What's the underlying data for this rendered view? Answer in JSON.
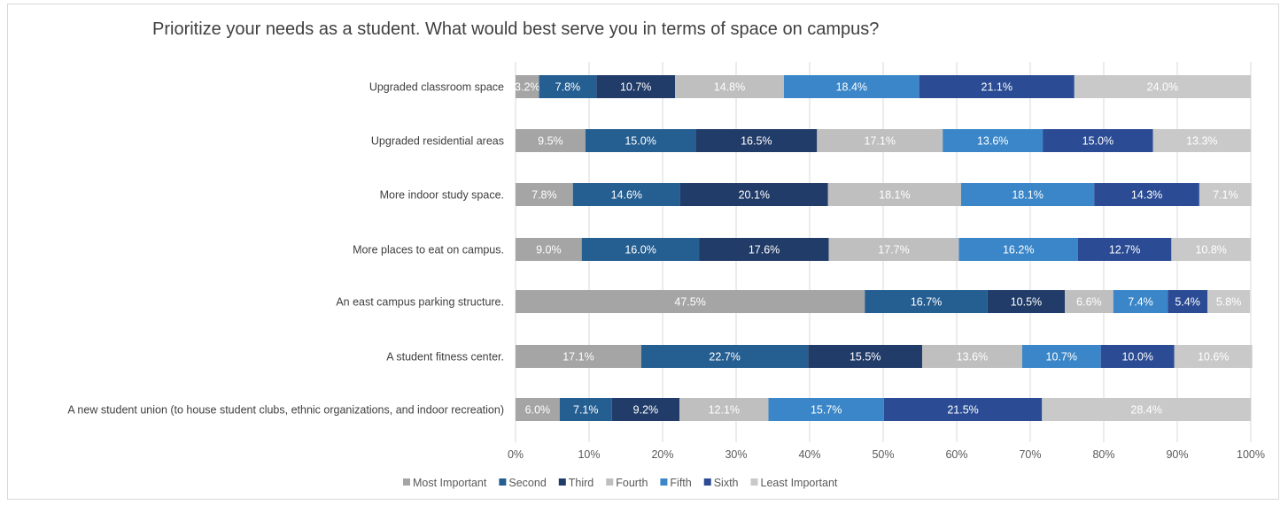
{
  "chart_data": {
    "type": "bar",
    "orientation": "horizontal",
    "stacked": "percent",
    "title": "Prioritize your needs as a student. What would best serve you in terms of space on campus?",
    "categories": [
      "Upgraded classroom space",
      "Upgraded residential areas",
      "More indoor study space.",
      "More places to eat on campus.",
      "An east campus parking structure.",
      "A student fitness center.",
      "A new student union (to house student clubs, ethnic organizations, and indoor recreation)"
    ],
    "series": [
      {
        "name": "Most Important",
        "color": "#a5a5a5",
        "values": [
          3.2,
          9.5,
          7.8,
          9.0,
          47.5,
          17.1,
          6.0
        ]
      },
      {
        "name": "Second",
        "color": "#255e91",
        "values": [
          7.8,
          15.0,
          14.6,
          16.0,
          16.7,
          22.7,
          7.1
        ]
      },
      {
        "name": "Third",
        "color": "#223c69",
        "values": [
          10.7,
          16.5,
          20.1,
          17.6,
          10.5,
          15.5,
          9.2
        ]
      },
      {
        "name": "Fourth",
        "color": "#bfbfbf",
        "values": [
          14.8,
          17.1,
          18.1,
          17.7,
          6.6,
          13.6,
          12.1
        ]
      },
      {
        "name": "Fifth",
        "color": "#3a86c8",
        "values": [
          18.4,
          13.6,
          18.1,
          16.2,
          7.4,
          10.7,
          15.7
        ]
      },
      {
        "name": "Sixth",
        "color": "#2b4c94",
        "values": [
          21.1,
          15.0,
          14.3,
          12.7,
          5.4,
          10.0,
          21.5
        ]
      },
      {
        "name": "Least Important",
        "color": "#c9c9c9",
        "values": [
          24.0,
          13.3,
          7.1,
          10.8,
          5.8,
          10.6,
          28.4
        ]
      }
    ],
    "data_labels": [
      [
        "3.2%",
        "7.8%",
        "10.7%",
        "14.8%",
        "18.4%",
        "21.1%",
        "24.0%"
      ],
      [
        "9.5%",
        "15.0%",
        "16.5%",
        "17.1%",
        "13.6%",
        "15.0%",
        "13.3%"
      ],
      [
        "7.8%",
        "14.6%",
        "20.1%",
        "18.1%",
        "18.1%",
        "14.3%",
        "7.1%"
      ],
      [
        "9.0%",
        "16.0%",
        "17.6%",
        "17.7%",
        "16.2%",
        "12.7%",
        "10.8%"
      ],
      [
        "47.5%",
        "16.7%",
        "10.5%",
        "6.6%",
        "7.4%",
        "5.4%",
        "5.8%"
      ],
      [
        "17.1%",
        "22.7%",
        "15.5%",
        "13.6%",
        "10.7%",
        "10.0%",
        "10.6%"
      ],
      [
        "6.0%",
        "7.1%",
        "9.2%",
        "12.1%",
        "15.7%",
        "21.5%",
        "28.4%"
      ]
    ],
    "xlim": [
      0,
      100
    ],
    "x_ticks": [
      "0%",
      "10%",
      "20%",
      "30%",
      "40%",
      "50%",
      "60%",
      "70%",
      "80%",
      "90%",
      "100%"
    ],
    "grid": true,
    "legend_position": "bottom"
  }
}
